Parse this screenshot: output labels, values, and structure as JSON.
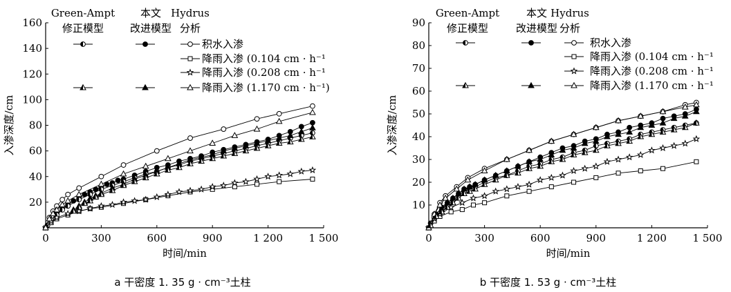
{
  "chart_data": [
    {
      "type": "line",
      "xlabel": "时间/min",
      "ylabel": "入渗深度/cm",
      "xlim": [
        0,
        1500
      ],
      "ylim": [
        0,
        160
      ],
      "xticks": [
        0,
        300,
        600,
        900,
        1200,
        1500
      ],
      "xtick_labels": [
        "0",
        "300",
        "600",
        "900",
        "1 200",
        "1 500"
      ],
      "yticks": [
        0,
        20,
        40,
        60,
        80,
        100,
        120,
        140,
        160
      ],
      "ytick_labels": [
        "",
        "20",
        "40",
        "60",
        "80",
        "100",
        "120",
        "140",
        "160"
      ],
      "legend_headers": [
        "Green-Ampt\n修正模型",
        "本文\n改进模型",
        "Hydrus\n分析"
      ],
      "legend_labels": [
        "积水入渗",
        "降雨入渗 (0.104 cm · h⁻¹",
        "降雨入渗 (0.208 cm · h⁻¹",
        "降雨入渗 (1.170 cm · h⁻¹)"
      ],
      "caption": "a 干密度 1. 35 g · cm⁻³土柱",
      "series": [
        {
          "group": "积水入渗",
          "model": "Hydrus",
          "marker": "circle-open",
          "x": [
            0,
            20,
            40,
            60,
            90,
            120,
            180,
            300,
            420,
            600,
            780,
            960,
            1140,
            1260,
            1440
          ],
          "values": [
            0,
            8,
            13,
            17,
            22,
            26,
            31,
            40,
            49,
            60,
            70,
            77,
            85,
            89,
            95
          ]
        },
        {
          "group": "积水入渗",
          "model": "本文改进模型",
          "marker": "circle-filled",
          "x": [
            10,
            30,
            60,
            90,
            120,
            150,
            180,
            210,
            240,
            270,
            300,
            330,
            360,
            390,
            420,
            480,
            540,
            600,
            660,
            720,
            780,
            840,
            900,
            960,
            1020,
            1080,
            1140,
            1200,
            1260,
            1320,
            1380,
            1440
          ],
          "values": [
            2,
            6,
            11,
            15,
            18,
            21,
            23,
            26,
            28,
            30,
            32,
            34,
            35,
            37,
            38,
            41,
            44,
            47,
            49,
            52,
            54,
            56,
            59,
            61,
            63,
            65,
            67,
            69,
            72,
            75,
            79,
            82
          ]
        },
        {
          "group": "积水入渗",
          "model": "Green-Ampt修正模型",
          "marker": "circle-half",
          "x": [
            10,
            30,
            60,
            90,
            120,
            180,
            240,
            300,
            360,
            420,
            480,
            540,
            600,
            660,
            720,
            780,
            840,
            900,
            960,
            1020,
            1080,
            1140,
            1200,
            1260,
            1320,
            1380,
            1440
          ],
          "values": [
            2,
            6,
            10,
            14,
            17,
            22,
            26,
            30,
            33,
            36,
            39,
            42,
            44,
            47,
            49,
            52,
            54,
            56,
            58,
            60,
            62,
            64,
            66,
            68,
            70,
            72,
            74
          ]
        },
        {
          "group": "降雨入渗 (0.104)",
          "model": "Hydrus",
          "marker": "square-open",
          "x": [
            0,
            30,
            60,
            120,
            180,
            240,
            300,
            420,
            540,
            660,
            780,
            900,
            1020,
            1140,
            1260,
            1440
          ],
          "values": [
            0,
            4,
            7,
            10,
            13,
            15,
            16,
            19,
            22,
            25,
            28,
            30,
            32,
            34,
            36,
            38
          ]
        },
        {
          "group": "降雨入渗 (0.208)",
          "model": "Hydrus",
          "marker": "star-open",
          "x": [
            0,
            30,
            60,
            120,
            180,
            240,
            300,
            360,
            420,
            480,
            540,
            600,
            660,
            720,
            780,
            840,
            900,
            960,
            1020,
            1080,
            1140,
            1200,
            1260,
            1320,
            1380,
            1440
          ],
          "values": [
            0,
            5,
            8,
            11,
            13,
            15,
            17,
            18,
            20,
            21,
            22,
            24,
            26,
            28,
            29,
            30,
            32,
            33,
            35,
            36,
            38,
            40,
            41,
            42,
            44,
            45
          ]
        },
        {
          "group": "降雨入渗 (1.170)",
          "model": "Hydrus",
          "marker": "triangle-open",
          "x": [
            0,
            20,
            40,
            60,
            90,
            120,
            180,
            300,
            420,
            540,
            660,
            780,
            900,
            1020,
            1140,
            1260,
            1440
          ],
          "values": [
            0,
            7,
            11,
            14,
            18,
            21,
            26,
            34,
            42,
            48,
            54,
            60,
            66,
            72,
            77,
            83,
            90
          ]
        },
        {
          "group": "降雨入渗 (1.170)",
          "model": "本文改进模型",
          "marker": "triangle-filled",
          "x": [
            150,
            180,
            210,
            240,
            270,
            300,
            360,
            420,
            480,
            540,
            600,
            660,
            720,
            780,
            840,
            900,
            960,
            1020,
            1080,
            1140,
            1200,
            1260,
            1320,
            1380,
            1440
          ],
          "values": [
            14,
            17,
            20,
            23,
            25,
            27,
            31,
            34,
            38,
            41,
            44,
            47,
            50,
            53,
            55,
            57,
            60,
            62,
            64,
            66,
            68,
            70,
            72,
            75,
            78
          ]
        },
        {
          "group": "降雨入渗 (1.170)",
          "model": "Green-Ampt修正模型",
          "marker": "triangle-half",
          "x": [
            150,
            180,
            210,
            240,
            270,
            300,
            360,
            420,
            480,
            540,
            600,
            660,
            720,
            780,
            840,
            900,
            960,
            1020,
            1080,
            1140,
            1200,
            1260,
            1320,
            1380,
            1440
          ],
          "values": [
            13,
            16,
            19,
            21,
            24,
            26,
            29,
            33,
            36,
            39,
            42,
            45,
            47,
            50,
            52,
            54,
            56,
            58,
            60,
            62,
            64,
            66,
            67,
            69,
            71
          ]
        }
      ]
    },
    {
      "type": "line",
      "xlabel": "时间/min",
      "ylabel": "入渗深度/cm",
      "xlim": [
        0,
        1500
      ],
      "ylim": [
        0,
        90
      ],
      "xticks": [
        0,
        300,
        600,
        900,
        1200,
        1500
      ],
      "xtick_labels": [
        "0",
        "300",
        "600",
        "900",
        "1 200",
        "1 500"
      ],
      "yticks": [
        0,
        10,
        20,
        30,
        40,
        50,
        60,
        70,
        80,
        90
      ],
      "ytick_labels": [
        "",
        "10",
        "20",
        "30",
        "40",
        "50",
        "60",
        "70",
        "80",
        "90"
      ],
      "legend_headers": [
        "Green-Ampt\n修正模型",
        "本文\n改进模型",
        "Hydrus\n分析"
      ],
      "legend_labels": [
        "积水入渗",
        "降雨入渗 (0.104 cm · h⁻¹",
        "降雨入渗 (0.208 cm · h⁻¹",
        "降雨入渗 (1.170 cm · h⁻¹"
      ],
      "caption": "b 干密度 1. 53 g · cm⁻³土柱",
      "series": [
        {
          "group": "积水入渗",
          "model": "Hydrus",
          "marker": "circle-open",
          "x": [
            0,
            30,
            60,
            90,
            150,
            210,
            300,
            420,
            540,
            660,
            780,
            900,
            1020,
            1140,
            1260,
            1380,
            1440
          ],
          "values": [
            0,
            6,
            11,
            14,
            18,
            22,
            26,
            30,
            34,
            38,
            41,
            44,
            47,
            49,
            51,
            54,
            55
          ]
        },
        {
          "group": "积水入渗",
          "model": "本文改进模型",
          "marker": "circle-filled",
          "x": [
            10,
            40,
            70,
            100,
            130,
            160,
            190,
            220,
            250,
            300,
            360,
            420,
            480,
            540,
            600,
            660,
            720,
            780,
            840,
            900,
            960,
            1020,
            1080,
            1140,
            1200,
            1260,
            1320,
            1380,
            1440
          ],
          "values": [
            2,
            6,
            9,
            11,
            13,
            15,
            17,
            18,
            19,
            21,
            23,
            25,
            27,
            29,
            31,
            33,
            35,
            36,
            38,
            39,
            41,
            42,
            44,
            45,
            46,
            48,
            49,
            50,
            52
          ]
        },
        {
          "group": "积水入渗",
          "model": "Green-Ampt修正模型",
          "marker": "circle-half",
          "x": [
            10,
            40,
            70,
            100,
            130,
            160,
            190,
            220,
            250,
            300,
            360,
            420,
            480,
            540,
            600,
            660,
            720,
            780,
            840,
            900,
            960,
            1020,
            1080,
            1140,
            1200,
            1260,
            1320,
            1380,
            1440
          ],
          "values": [
            2,
            5,
            8,
            10,
            12,
            14,
            16,
            17,
            18,
            20,
            22,
            23,
            25,
            27,
            28,
            30,
            31,
            33,
            34,
            36,
            37,
            38,
            39,
            41,
            42,
            43,
            44,
            45,
            46
          ]
        },
        {
          "group": "降雨入渗 (0.104)",
          "model": "Hydrus",
          "marker": "square-open",
          "x": [
            0,
            30,
            60,
            120,
            180,
            240,
            300,
            420,
            540,
            660,
            780,
            900,
            1020,
            1140,
            1260,
            1440
          ],
          "values": [
            0,
            3,
            5,
            7,
            8,
            10,
            11,
            14,
            16,
            18,
            20,
            22,
            24,
            25,
            26,
            29
          ]
        },
        {
          "group": "降雨入渗 (0.208)",
          "model": "Hydrus",
          "marker": "star-open",
          "x": [
            0,
            30,
            60,
            120,
            180,
            240,
            300,
            360,
            420,
            480,
            540,
            600,
            660,
            720,
            780,
            840,
            900,
            960,
            1020,
            1080,
            1140,
            1200,
            1260,
            1320,
            1380,
            1440
          ],
          "values": [
            0,
            4,
            6,
            9,
            11,
            13,
            14,
            16,
            17,
            18,
            19,
            21,
            22,
            23,
            25,
            26,
            27,
            29,
            30,
            31,
            32,
            34,
            35,
            36,
            37,
            39
          ]
        },
        {
          "group": "降雨入渗 (1.170)",
          "model": "Hydrus",
          "marker": "triangle-open",
          "x": [
            0,
            30,
            60,
            90,
            150,
            210,
            300,
            420,
            540,
            660,
            780,
            900,
            1020,
            1140,
            1260,
            1380,
            1440
          ],
          "values": [
            0,
            6,
            10,
            13,
            17,
            21,
            25,
            30,
            34,
            38,
            41,
            44,
            47,
            49,
            51,
            53,
            54
          ]
        },
        {
          "group": "降雨入渗 (1.170)",
          "model": "本文改进模型",
          "marker": "triangle-filled",
          "x": [
            10,
            40,
            70,
            100,
            130,
            160,
            190,
            220,
            250,
            300,
            360,
            420,
            480,
            540,
            600,
            660,
            720,
            780,
            840,
            900,
            960,
            1020,
            1080,
            1140,
            1200,
            1260,
            1320,
            1380,
            1440
          ],
          "values": [
            1,
            5,
            8,
            11,
            13,
            15,
            17,
            18,
            19,
            21,
            23,
            25,
            27,
            29,
            30,
            32,
            34,
            35,
            37,
            38,
            40,
            41,
            42,
            44,
            45,
            46,
            48,
            49,
            51
          ]
        },
        {
          "group": "降雨入渗 (1.170)",
          "model": "Green-Ampt修正模型",
          "marker": "triangle-half",
          "x": [
            10,
            40,
            70,
            100,
            130,
            160,
            190,
            220,
            250,
            300,
            360,
            420,
            480,
            540,
            600,
            660,
            720,
            780,
            840,
            900,
            960,
            1020,
            1080,
            1140,
            1200,
            1260,
            1320,
            1380,
            1440
          ],
          "values": [
            1,
            5,
            7,
            9,
            11,
            13,
            15,
            16,
            17,
            19,
            21,
            23,
            24,
            26,
            27,
            29,
            30,
            32,
            33,
            34,
            36,
            37,
            38,
            40,
            41,
            42,
            43,
            44,
            46
          ]
        }
      ]
    }
  ]
}
